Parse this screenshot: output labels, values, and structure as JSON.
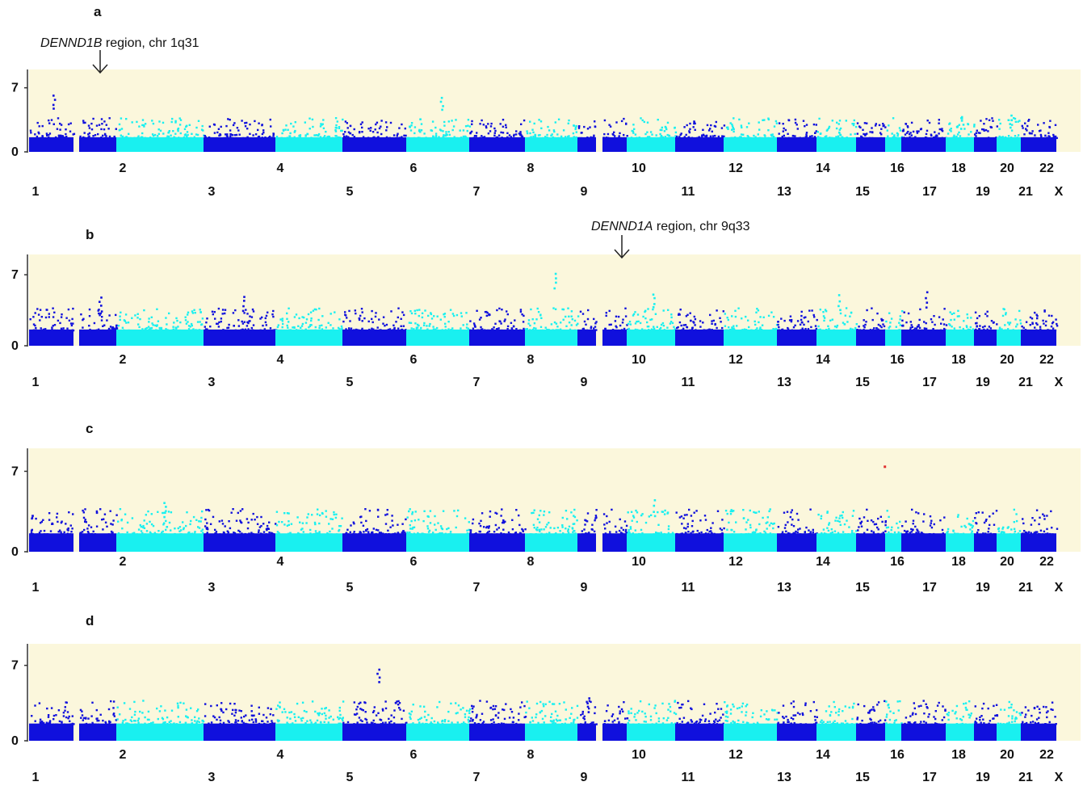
{
  "colors": {
    "background": "#fbf7dc",
    "dark_points": "#1010dd",
    "light_points": "#19f0f0",
    "axis": "#333333",
    "highlight_point": "#e03030"
  },
  "chart_data": [
    {
      "type": "scatter",
      "panel": "a",
      "title": "",
      "y_ticks": [
        "0",
        "7"
      ],
      "ylim": [
        0,
        9
      ],
      "chromosomes": [
        "1",
        "2",
        "3",
        "4",
        "5",
        "6",
        "7",
        "8",
        "9",
        "10",
        "11",
        "12",
        "13",
        "14",
        "15",
        "16",
        "17",
        "18",
        "19",
        "20",
        "21",
        "22",
        "X"
      ],
      "annotation": {
        "gene": "DENND1B",
        "text": " region, chr 1q31",
        "chromosome": "1"
      },
      "peaks": [
        {
          "chromosome": "1",
          "value": 6.3
        },
        {
          "chromosome": "7",
          "value": 6.2
        },
        {
          "chromosome": "20",
          "value": 4.0
        },
        {
          "chromosome": "22",
          "value": 4.2
        }
      ]
    },
    {
      "type": "scatter",
      "panel": "b",
      "title": "",
      "y_ticks": [
        "0",
        "7"
      ],
      "ylim": [
        0,
        9
      ],
      "chromosomes": [
        "1",
        "2",
        "3",
        "4",
        "5",
        "6",
        "7",
        "8",
        "9",
        "10",
        "11",
        "12",
        "13",
        "14",
        "15",
        "16",
        "17",
        "18",
        "19",
        "20",
        "21",
        "22",
        "X"
      ],
      "annotation": {
        "gene": "DENND1A",
        "text": " region, chr 9q33",
        "chromosome": "9"
      },
      "peaks": [
        {
          "chromosome": "9",
          "value": 7.3
        },
        {
          "chromosome": "2",
          "value": 5.0
        },
        {
          "chromosome": "4",
          "value": 5.0
        },
        {
          "chromosome": "12",
          "value": 5.3
        },
        {
          "chromosome": "16",
          "value": 5.1
        },
        {
          "chromosome": "19",
          "value": 5.4
        }
      ]
    },
    {
      "type": "scatter",
      "panel": "c",
      "title": "",
      "y_ticks": [
        "0",
        "7"
      ],
      "ylim": [
        0,
        9
      ],
      "chromosomes": [
        "1",
        "2",
        "3",
        "4",
        "5",
        "6",
        "7",
        "8",
        "9",
        "10",
        "11",
        "12",
        "13",
        "14",
        "15",
        "16",
        "17",
        "18",
        "19",
        "20",
        "21",
        "22",
        "X"
      ],
      "annotation": null,
      "highlight": {
        "chromosome": "17",
        "value": 7.5
      },
      "peaks": [
        {
          "chromosome": "12",
          "value": 4.6
        },
        {
          "chromosome": "3",
          "value": 4.5
        }
      ]
    },
    {
      "type": "scatter",
      "panel": "d",
      "title": "",
      "y_ticks": [
        "0",
        "7"
      ],
      "ylim": [
        0,
        9
      ],
      "chromosomes": [
        "1",
        "2",
        "3",
        "4",
        "5",
        "6",
        "7",
        "8",
        "9",
        "10",
        "11",
        "12",
        "13",
        "14",
        "15",
        "16",
        "17",
        "18",
        "19",
        "20",
        "21",
        "22",
        "X"
      ],
      "annotation": null,
      "peaks": [
        {
          "chromosome": "6",
          "value": 6.9
        },
        {
          "chromosome": "10",
          "value": 4.2
        }
      ]
    }
  ]
}
